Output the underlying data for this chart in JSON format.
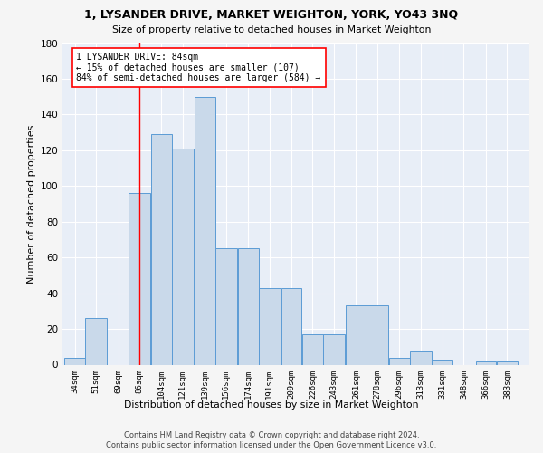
{
  "title": "1, LYSANDER DRIVE, MARKET WEIGHTON, YORK, YO43 3NQ",
  "subtitle": "Size of property relative to detached houses in Market Weighton",
  "xlabel": "Distribution of detached houses by size in Market Weighton",
  "ylabel": "Number of detached properties",
  "bar_labels": [
    "34sqm",
    "51sqm",
    "69sqm",
    "86sqm",
    "104sqm",
    "121sqm",
    "139sqm",
    "156sqm",
    "174sqm",
    "191sqm",
    "209sqm",
    "226sqm",
    "243sqm",
    "261sqm",
    "278sqm",
    "296sqm",
    "313sqm",
    "331sqm",
    "348sqm",
    "366sqm",
    "383sqm"
  ],
  "bar_vals": [
    4,
    26,
    0,
    96,
    129,
    121,
    150,
    65,
    65,
    43,
    43,
    17,
    17,
    33,
    33,
    4,
    8,
    3,
    0,
    2,
    2
  ],
  "bar_color": "#c9d9ea",
  "bar_edge_color": "#5b9bd5",
  "property_line_x": 86,
  "ylim": [
    0,
    180
  ],
  "yticks": [
    0,
    20,
    40,
    60,
    80,
    100,
    120,
    140,
    160,
    180
  ],
  "background_color": "#e8eef7",
  "grid_color": "#ffffff",
  "ann_text_line1": "1 LYSANDER DRIVE: 84sqm",
  "ann_text_line2": "← 15% of detached houses are smaller (107)",
  "ann_text_line3": "84% of semi-detached houses are larger (584) →",
  "footnote1": "Contains HM Land Registry data © Crown copyright and database right 2024.",
  "footnote2": "Contains public sector information licensed under the Open Government Licence v3.0."
}
